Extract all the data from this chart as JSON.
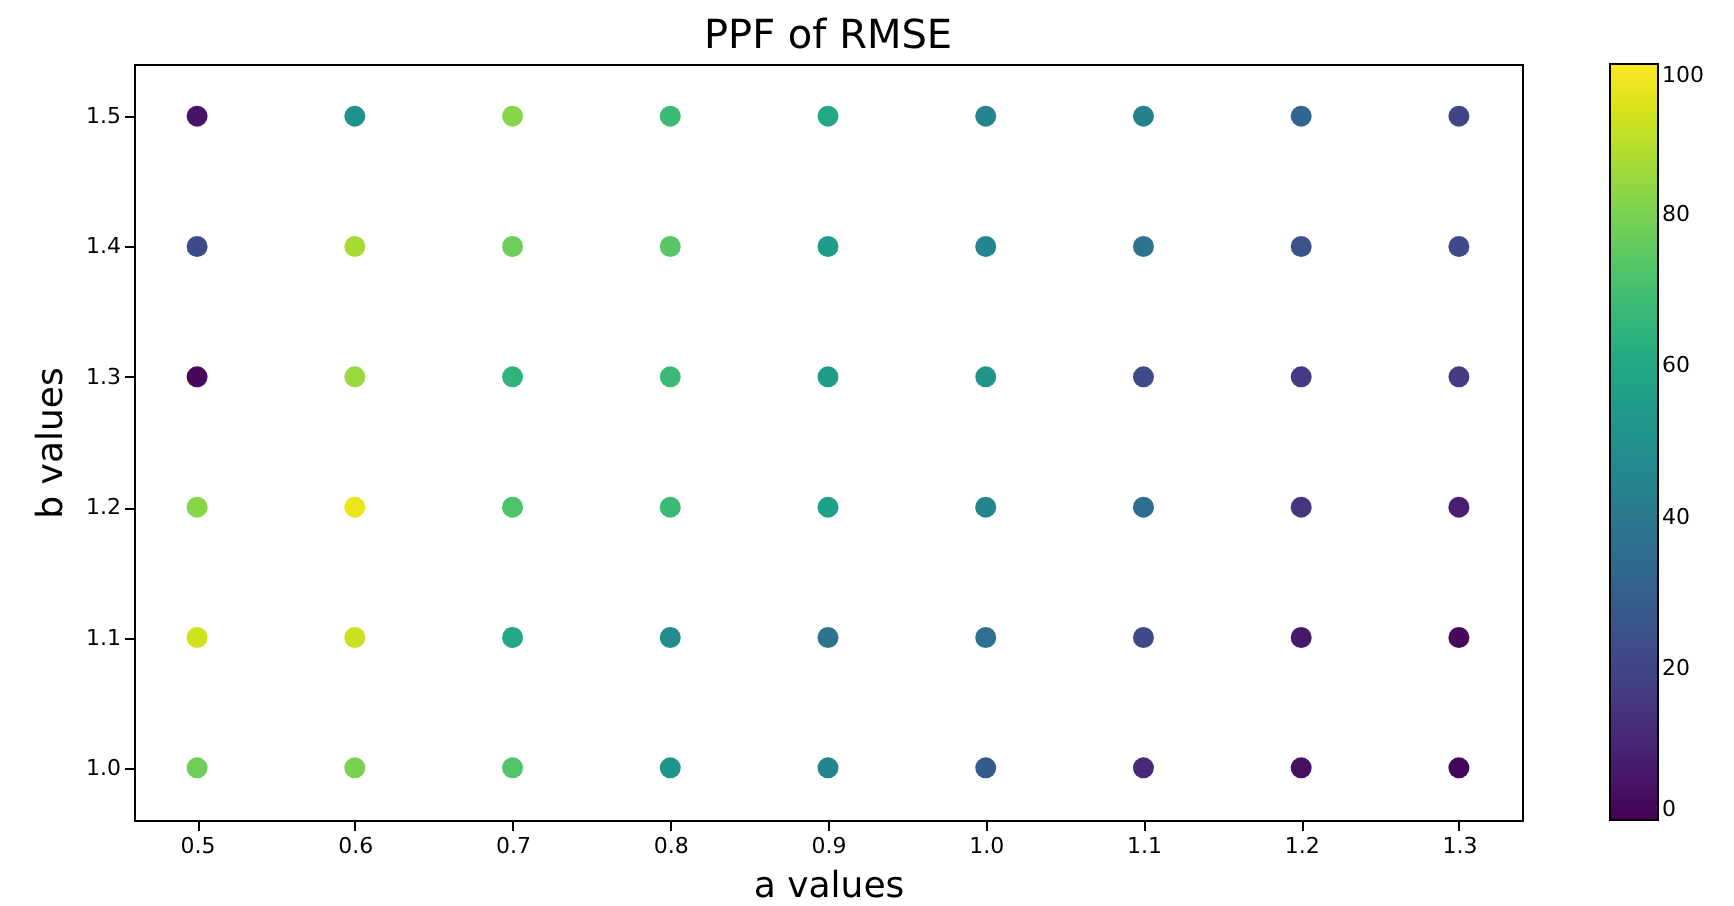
{
  "chart_data": {
    "type": "scatter",
    "title": "PPF of RMSE",
    "xlabel": "a values",
    "ylabel": "b values",
    "x": [
      0.5,
      0.6,
      0.7,
      0.8,
      0.9,
      1.0,
      1.1,
      1.2,
      1.3,
      0.5,
      0.6,
      0.7,
      0.8,
      0.9,
      1.0,
      1.1,
      1.2,
      1.3,
      0.5,
      0.6,
      0.7,
      0.8,
      0.9,
      1.0,
      1.1,
      1.2,
      1.3,
      0.5,
      0.6,
      0.7,
      0.8,
      0.9,
      1.0,
      1.1,
      1.2,
      1.3,
      0.5,
      0.6,
      0.7,
      0.8,
      0.9,
      1.0,
      1.1,
      1.2,
      1.3,
      0.5,
      0.6,
      0.7,
      0.8,
      0.9,
      1.0,
      1.1,
      1.2,
      1.3
    ],
    "values": [
      1.5,
      1.5,
      1.5,
      1.5,
      1.5,
      1.5,
      1.5,
      1.5,
      1.5,
      1.4,
      1.4,
      1.4,
      1.4,
      1.4,
      1.4,
      1.4,
      1.4,
      1.4,
      1.3,
      1.3,
      1.3,
      1.3,
      1.3,
      1.3,
      1.3,
      1.3,
      1.3,
      1.2,
      1.2,
      1.2,
      1.2,
      1.2,
      1.2,
      1.2,
      1.2,
      1.2,
      1.1,
      1.1,
      1.1,
      1.1,
      1.1,
      1.1,
      1.1,
      1.1,
      1.1,
      1.0,
      1.0,
      1.0,
      1.0,
      1.0,
      1.0,
      1.0,
      1.0,
      1.0
    ],
    "cvalues": [
      5,
      50,
      82,
      68,
      60,
      45,
      43,
      33,
      20,
      22,
      87,
      78,
      74,
      55,
      45,
      38,
      25,
      22,
      2,
      85,
      65,
      68,
      55,
      52,
      22,
      17,
      17,
      82,
      97,
      72,
      68,
      57,
      45,
      35,
      15,
      8,
      93,
      92,
      60,
      48,
      38,
      37,
      22,
      6,
      2,
      78,
      80,
      73,
      52,
      45,
      28,
      12,
      4,
      1
    ],
    "xlim": [
      0.46,
      1.34
    ],
    "ylim": [
      0.96,
      1.54
    ],
    "xticks": [
      0.5,
      0.6,
      0.7,
      0.8,
      0.9,
      {
        "value": 1,
        "label": "1.0"
      },
      1.1,
      1.2,
      1.3
    ],
    "yticks": [
      {
        "value": 1,
        "label": "1.0"
      },
      1.1,
      1.2,
      1.3,
      1.4,
      1.5
    ],
    "clim": [
      0,
      100
    ],
    "cticks": [
      0,
      20,
      40,
      60,
      80,
      100
    ]
  }
}
